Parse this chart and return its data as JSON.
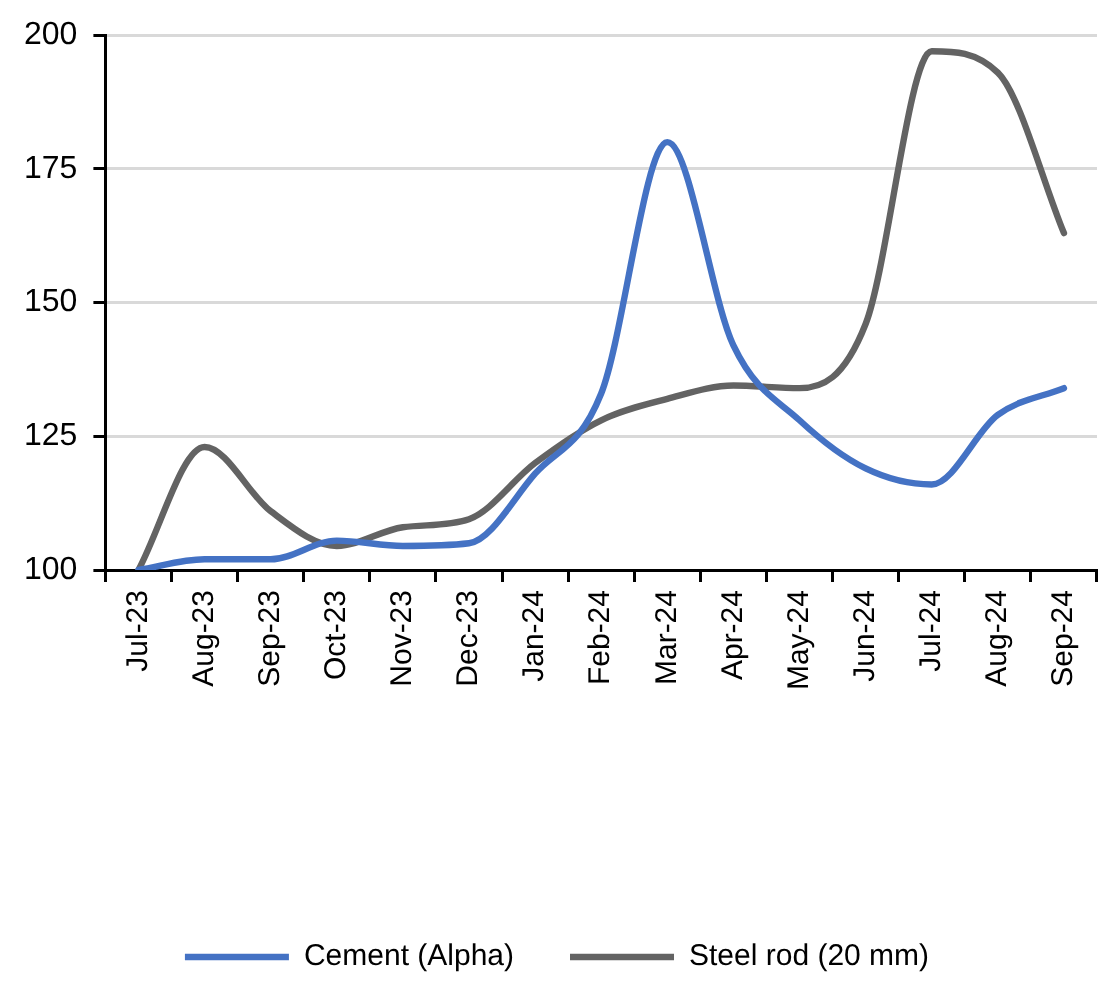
{
  "chart_data": {
    "type": "line",
    "categories": [
      "Jul-23",
      "Aug-23",
      "Sep-23",
      "Oct-23",
      "Nov-23",
      "Dec-23",
      "Jan-24",
      "Feb-24",
      "Mar-24",
      "Apr-24",
      "May-24",
      "Jun-24",
      "Jul-24",
      "Aug-24",
      "Sep-24"
    ],
    "series": [
      {
        "name": "Cement (Alpha)",
        "color": "#4472c4",
        "values": [
          100,
          102,
          102,
          105.5,
          104.5,
          105,
          118,
          133,
          180,
          142,
          128,
          119,
          116,
          129,
          134
        ]
      },
      {
        "name": "Steel rod (20 mm)",
        "color": "#636363",
        "values": [
          100,
          123,
          111,
          104.5,
          108,
          109.5,
          120,
          128,
          132,
          134.5,
          134,
          146,
          197,
          193,
          163
        ]
      }
    ],
    "ylim": [
      100,
      200
    ],
    "yticks": [
      100,
      125,
      150,
      175,
      200
    ],
    "grid": "y",
    "legend": "bottom",
    "marker": "none",
    "line_style": "solid"
  }
}
